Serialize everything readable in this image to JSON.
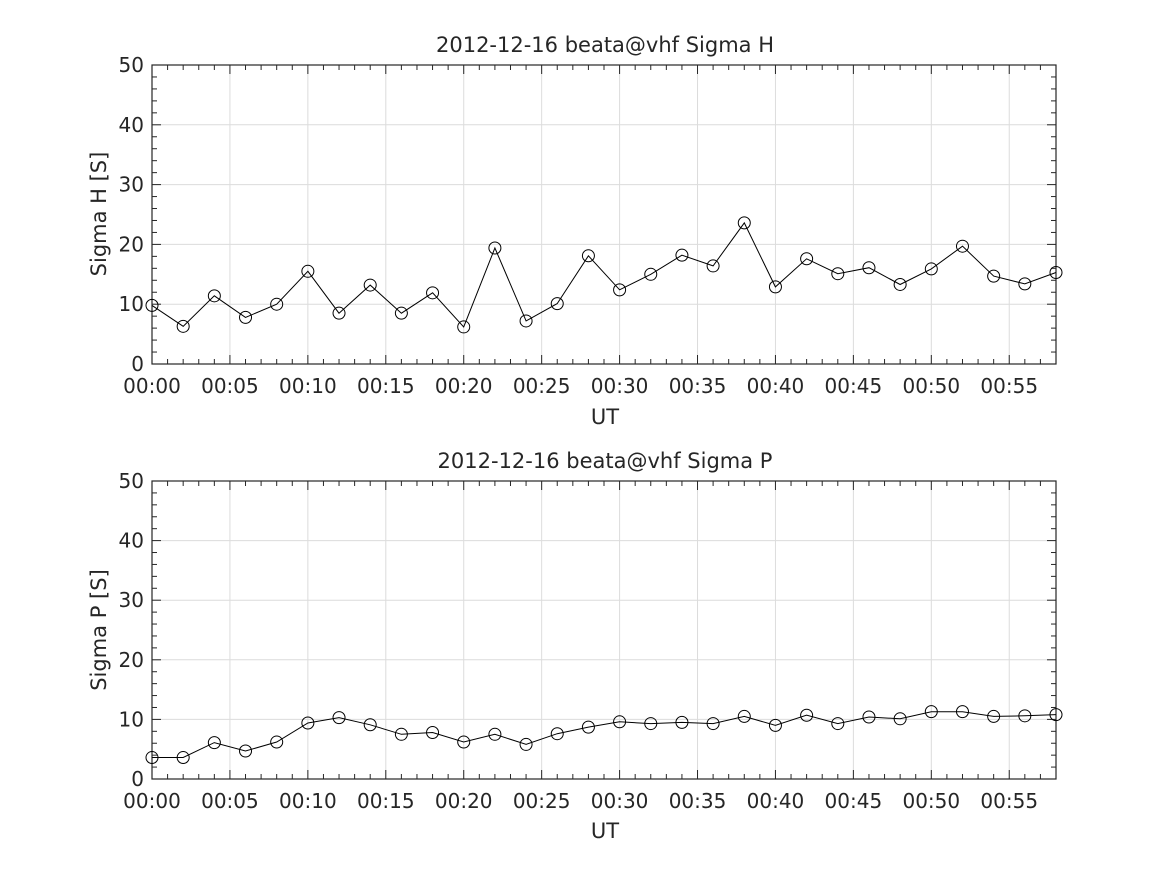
{
  "chart_data": [
    {
      "type": "line",
      "title": "2012-12-16  beata@vhf Sigma H",
      "xlabel": "UT",
      "ylabel": "Sigma H [S]",
      "x_unit": "minutes after 00:00 UT",
      "xlim": [
        0,
        58
      ],
      "ylim": [
        0,
        50
      ],
      "yticks": [
        0,
        10,
        20,
        30,
        40,
        50
      ],
      "xticks": [
        0,
        5,
        10,
        15,
        20,
        25,
        30,
        35,
        40,
        45,
        50,
        55
      ],
      "xticklabels": [
        "00:00",
        "00:05",
        "00:10",
        "00:15",
        "00:20",
        "00:25",
        "00:30",
        "00:35",
        "00:40",
        "00:45",
        "00:50",
        "00:55"
      ],
      "grid": true,
      "marker": "open-circle",
      "color": "#000000",
      "series": [
        {
          "x": [
            0,
            2,
            4,
            6,
            8,
            10,
            12,
            14,
            16,
            18,
            20,
            22,
            24,
            26,
            28,
            30,
            32,
            34,
            36,
            38,
            40,
            42,
            44,
            46,
            48,
            50,
            52,
            54,
            56,
            58
          ],
          "values": [
            9.8,
            6.3,
            11.4,
            7.8,
            10.0,
            15.5,
            8.5,
            13.2,
            8.5,
            11.9,
            6.2,
            19.4,
            7.2,
            10.1,
            18.1,
            12.4,
            15.0,
            18.2,
            16.4,
            23.6,
            12.9,
            17.6,
            15.1,
            16.1,
            13.3,
            15.9,
            19.7,
            14.7,
            13.4,
            15.3
          ]
        }
      ]
    },
    {
      "type": "line",
      "title": "2012-12-16  beata@vhf Sigma P",
      "xlabel": "UT",
      "ylabel": "Sigma P [S]",
      "x_unit": "minutes after 00:00 UT",
      "xlim": [
        0,
        58
      ],
      "ylim": [
        0,
        50
      ],
      "yticks": [
        0,
        10,
        20,
        30,
        40,
        50
      ],
      "xticks": [
        0,
        5,
        10,
        15,
        20,
        25,
        30,
        35,
        40,
        45,
        50,
        55
      ],
      "xticklabels": [
        "00:00",
        "00:05",
        "00:10",
        "00:15",
        "00:20",
        "00:25",
        "00:30",
        "00:35",
        "00:40",
        "00:45",
        "00:50",
        "00:55"
      ],
      "grid": true,
      "marker": "open-circle",
      "color": "#000000",
      "series": [
        {
          "x": [
            0,
            2,
            4,
            6,
            8,
            10,
            12,
            14,
            16,
            18,
            20,
            22,
            24,
            26,
            28,
            30,
            32,
            34,
            36,
            38,
            40,
            42,
            44,
            46,
            48,
            50,
            52,
            54,
            56,
            58
          ],
          "values": [
            3.6,
            3.6,
            6.1,
            4.7,
            6.2,
            9.4,
            10.3,
            9.1,
            7.5,
            7.8,
            6.2,
            7.5,
            5.8,
            7.6,
            8.7,
            9.6,
            9.3,
            9.5,
            9.3,
            10.5,
            9.0,
            10.7,
            9.3,
            10.4,
            10.1,
            11.3,
            11.3,
            10.5,
            10.6,
            10.8
          ]
        }
      ]
    }
  ]
}
